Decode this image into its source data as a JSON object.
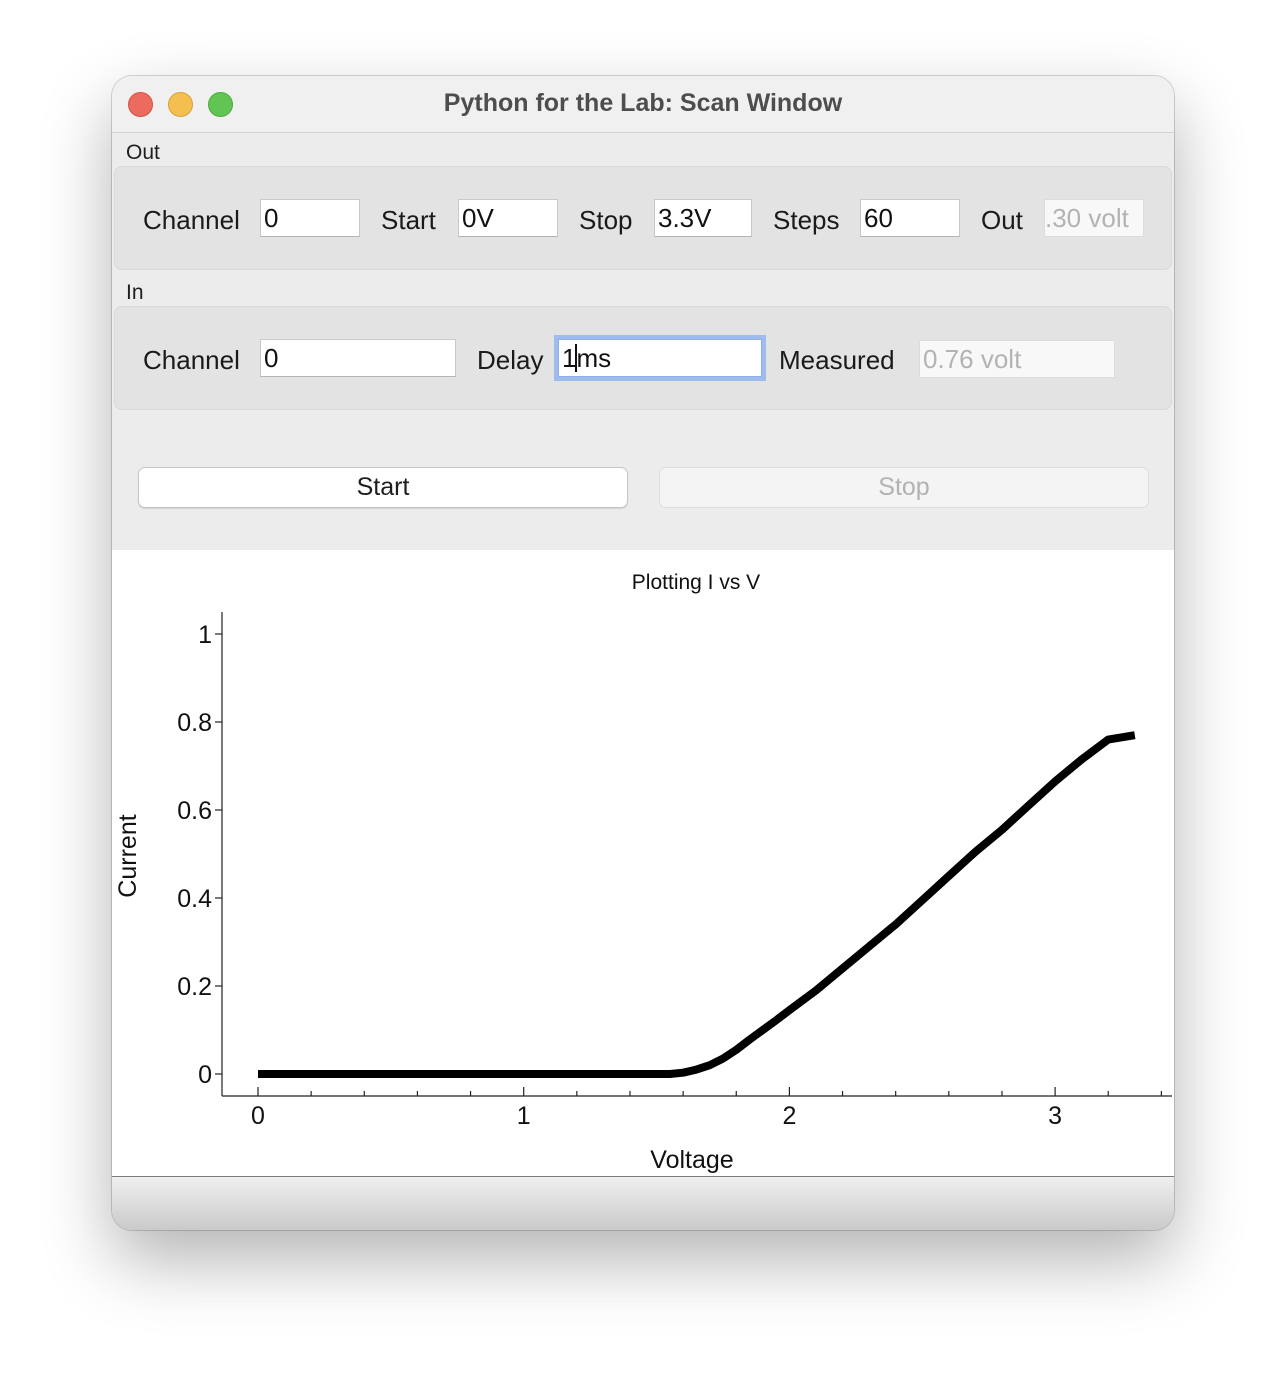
{
  "window": {
    "title": "Python for the Lab: Scan Window"
  },
  "out_group": {
    "label": "Out",
    "channel_label": "Channel",
    "channel_value": "0",
    "start_label": "Start",
    "start_value": "0V",
    "stop_label": "Stop",
    "stop_value": "3.3V",
    "steps_label": "Steps",
    "steps_value": "60",
    "out_label": "Out",
    "out_value": ".30 volt"
  },
  "in_group": {
    "label": "In",
    "channel_label": "Channel",
    "channel_value": "0",
    "delay_label": "Delay",
    "delay_before_caret": "1",
    "delay_after_caret": "ms",
    "measured_label": "Measured",
    "measured_value": "0.76 volt"
  },
  "buttons": {
    "start": "Start",
    "stop": "Stop"
  },
  "chart_data": {
    "type": "line",
    "title": "Plotting I vs V",
    "xlabel": "Voltage",
    "ylabel": "Current",
    "xlim": [
      -0.14,
      3.43
    ],
    "ylim": [
      -0.05,
      1.05
    ],
    "xticks": [
      0,
      1,
      2,
      3
    ],
    "xtick_labels": [
      "0",
      "1",
      "2",
      "3"
    ],
    "yticks": [
      0,
      0.2,
      0.4,
      0.6,
      0.8,
      1
    ],
    "ytick_labels": [
      "0",
      "0.2",
      "0.4",
      "0.6",
      "0.8",
      "1"
    ],
    "grid": false,
    "line_color": "#000000",
    "x": [
      0,
      0.2,
      0.4,
      0.6,
      0.8,
      1.0,
      1.2,
      1.4,
      1.5,
      1.55,
      1.6,
      1.65,
      1.7,
      1.75,
      1.8,
      1.85,
      1.9,
      1.95,
      2.0,
      2.1,
      2.2,
      2.3,
      2.4,
      2.5,
      2.6,
      2.7,
      2.8,
      2.9,
      3.0,
      3.1,
      3.2,
      3.3
    ],
    "y": [
      0,
      0,
      0,
      0,
      0,
      0,
      0,
      0,
      0,
      0,
      0.003,
      0.01,
      0.02,
      0.035,
      0.055,
      0.078,
      0.1,
      0.122,
      0.145,
      0.19,
      0.24,
      0.29,
      0.34,
      0.395,
      0.45,
      0.505,
      0.555,
      0.61,
      0.665,
      0.715,
      0.76,
      0.77
    ]
  }
}
